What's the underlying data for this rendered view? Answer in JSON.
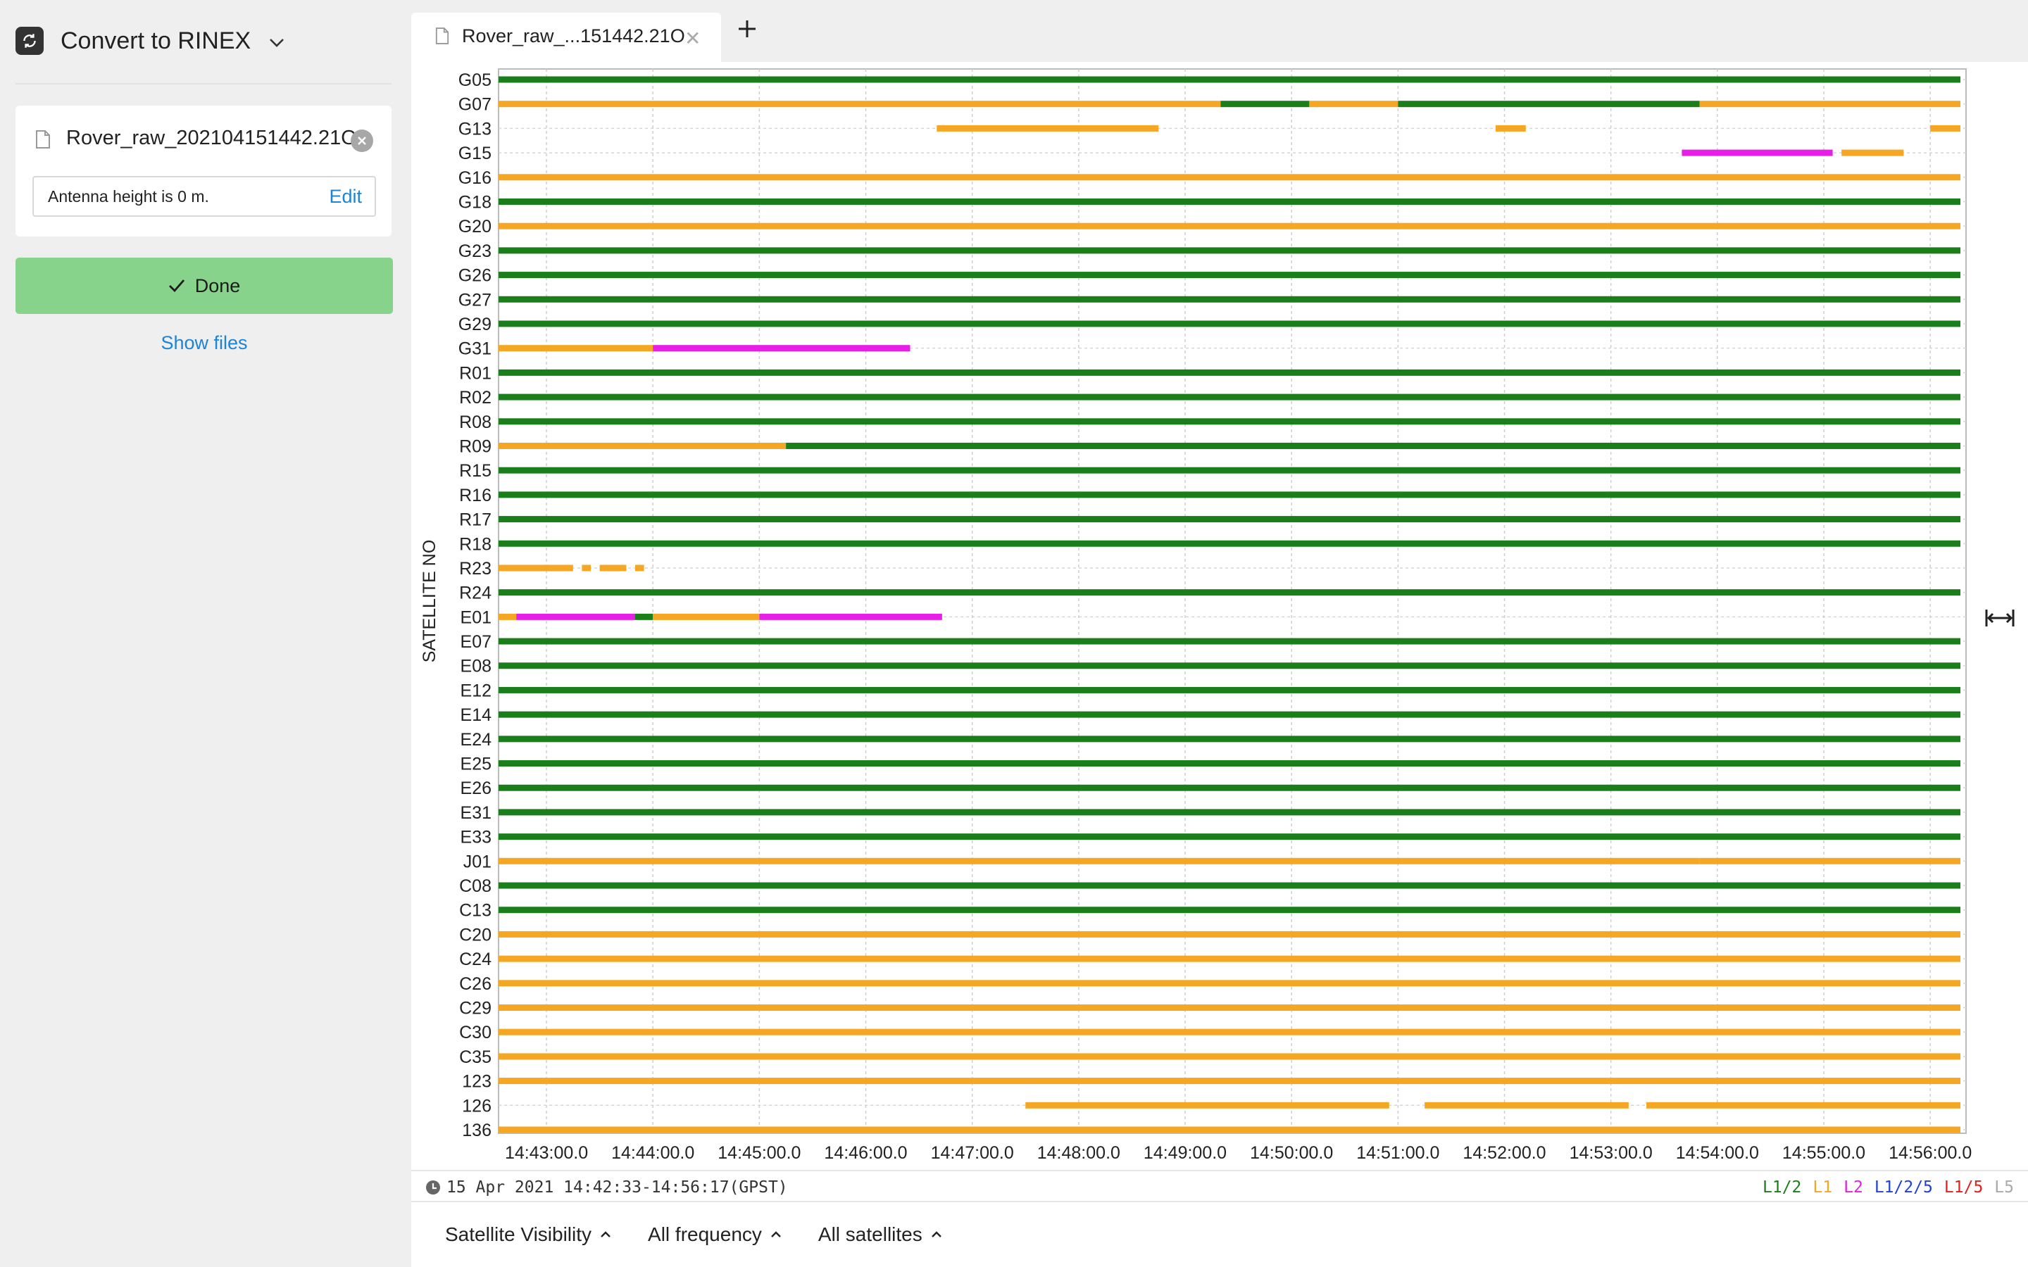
{
  "app": {
    "title": "Convert to RINEX"
  },
  "file_card": {
    "file_name": "Rover_raw_202104151442.21O",
    "antenna_text": "Antenna height is 0 m.",
    "edit_label": "Edit"
  },
  "done_label": "Done",
  "show_files_label": "Show files",
  "tab": {
    "title": "Rover_raw_...151442.21O"
  },
  "chart_data": {
    "type": "satellite-visibility-timeline",
    "ylabel": "SATELLITE NO",
    "x_ticks": [
      "14:43:00.0",
      "14:44:00.0",
      "14:45:00.0",
      "14:46:00.0",
      "14:47:00.0",
      "14:48:00.0",
      "14:49:00.0",
      "14:50:00.0",
      "14:51:00.0",
      "14:52:00.0",
      "14:53:00.0",
      "14:54:00.0",
      "14:55:00.0",
      "14:56:00.0"
    ],
    "xlim": [
      "14:42:33",
      "14:56:17"
    ],
    "grid": true,
    "colors": {
      "L1/2": "#1a7f1a",
      "L1": "#f5a623",
      "L2": "#e61ee6",
      "L1/2/5": "#1f3fe0",
      "L1/5": "#e02020",
      "L5": "#aaaaaa",
      "gap": "#bbbbbb"
    },
    "satellites": [
      {
        "id": "G05",
        "segments": [
          [
            "14:42:33",
            "14:56:17",
            "L1/2"
          ]
        ]
      },
      {
        "id": "G07",
        "segments": [
          [
            "14:42:33",
            "14:49:20",
            "L1"
          ],
          [
            "14:49:20",
            "14:50:10",
            "L1/2"
          ],
          [
            "14:50:10",
            "14:51:00",
            "L1"
          ],
          [
            "14:51:00",
            "14:53:50",
            "L1/2"
          ],
          [
            "14:53:50",
            "14:56:17",
            "L1"
          ]
        ]
      },
      {
        "id": "G13",
        "segments": [
          [
            "14:46:40",
            "14:48:45",
            "L1"
          ],
          [
            "14:51:55",
            "14:52:12",
            "L1"
          ],
          [
            "14:56:00",
            "14:56:17",
            "L1"
          ]
        ]
      },
      {
        "id": "G15",
        "segments": [
          [
            "14:53:40",
            "14:55:05",
            "L2"
          ],
          [
            "14:55:10",
            "14:55:45",
            "L1"
          ]
        ]
      },
      {
        "id": "G16",
        "segments": [
          [
            "14:42:33",
            "14:56:17",
            "L1"
          ]
        ]
      },
      {
        "id": "G18",
        "segments": [
          [
            "14:42:33",
            "14:56:17",
            "L1/2"
          ]
        ]
      },
      {
        "id": "G20",
        "segments": [
          [
            "14:42:33",
            "14:56:17",
            "L1"
          ]
        ]
      },
      {
        "id": "G23",
        "segments": [
          [
            "14:42:33",
            "14:56:17",
            "L1/2"
          ]
        ]
      },
      {
        "id": "G26",
        "segments": [
          [
            "14:42:33",
            "14:56:17",
            "L1/2"
          ]
        ]
      },
      {
        "id": "G27",
        "segments": [
          [
            "14:42:33",
            "14:56:17",
            "L1/2"
          ]
        ]
      },
      {
        "id": "G29",
        "segments": [
          [
            "14:42:33",
            "14:56:17",
            "L1/2"
          ]
        ]
      },
      {
        "id": "G31",
        "segments": [
          [
            "14:42:33",
            "14:44:00",
            "L1"
          ],
          [
            "14:44:00",
            "14:46:25",
            "L2"
          ]
        ]
      },
      {
        "id": "R01",
        "segments": [
          [
            "14:42:33",
            "14:56:17",
            "L1/2"
          ]
        ]
      },
      {
        "id": "R02",
        "segments": [
          [
            "14:42:33",
            "14:56:17",
            "L1/2"
          ]
        ]
      },
      {
        "id": "R08",
        "segments": [
          [
            "14:42:33",
            "14:56:17",
            "L1/2"
          ]
        ]
      },
      {
        "id": "R09",
        "segments": [
          [
            "14:42:33",
            "14:45:15",
            "L1"
          ],
          [
            "14:45:15",
            "14:56:17",
            "L1/2"
          ]
        ]
      },
      {
        "id": "R15",
        "segments": [
          [
            "14:42:33",
            "14:56:17",
            "L1/2"
          ]
        ]
      },
      {
        "id": "R16",
        "segments": [
          [
            "14:42:33",
            "14:56:17",
            "L1/2"
          ]
        ]
      },
      {
        "id": "R17",
        "segments": [
          [
            "14:42:33",
            "14:56:17",
            "L1/2"
          ]
        ]
      },
      {
        "id": "R18",
        "segments": [
          [
            "14:42:33",
            "14:56:17",
            "L1/2"
          ]
        ]
      },
      {
        "id": "R23",
        "segments": [
          [
            "14:42:33",
            "14:43:15",
            "L1"
          ],
          [
            "14:43:20",
            "14:43:25",
            "L1"
          ],
          [
            "14:43:30",
            "14:43:45",
            "L1"
          ],
          [
            "14:43:50",
            "14:43:55",
            "L1"
          ]
        ]
      },
      {
        "id": "R24",
        "segments": [
          [
            "14:42:33",
            "14:56:17",
            "L1/2"
          ]
        ]
      },
      {
        "id": "E01",
        "segments": [
          [
            "14:42:33",
            "14:42:43",
            "L1"
          ],
          [
            "14:42:43",
            "14:43:50",
            "L2"
          ],
          [
            "14:43:50",
            "14:44:00",
            "L1/2"
          ],
          [
            "14:44:00",
            "14:45:00",
            "L1"
          ],
          [
            "14:45:00",
            "14:46:43",
            "L2"
          ]
        ]
      },
      {
        "id": "E07",
        "segments": [
          [
            "14:42:33",
            "14:56:17",
            "L1/2"
          ]
        ]
      },
      {
        "id": "E08",
        "segments": [
          [
            "14:42:33",
            "14:56:17",
            "L1/2"
          ]
        ]
      },
      {
        "id": "E12",
        "segments": [
          [
            "14:42:33",
            "14:56:17",
            "L1/2"
          ]
        ]
      },
      {
        "id": "E14",
        "segments": [
          [
            "14:42:33",
            "14:56:17",
            "L1/2"
          ]
        ]
      },
      {
        "id": "E24",
        "segments": [
          [
            "14:42:33",
            "14:56:17",
            "L1/2"
          ]
        ]
      },
      {
        "id": "E25",
        "segments": [
          [
            "14:42:33",
            "14:56:17",
            "L1/2"
          ]
        ]
      },
      {
        "id": "E26",
        "segments": [
          [
            "14:42:33",
            "14:56:17",
            "L1/2"
          ]
        ]
      },
      {
        "id": "E31",
        "segments": [
          [
            "14:42:33",
            "14:56:17",
            "L1/2"
          ]
        ]
      },
      {
        "id": "E33",
        "segments": [
          [
            "14:42:33",
            "14:56:17",
            "L1/2"
          ]
        ]
      },
      {
        "id": "J01",
        "segments": [
          [
            "14:42:33",
            "14:53:50",
            "L1"
          ],
          [
            "14:53:50",
            "14:56:17",
            "L1"
          ]
        ]
      },
      {
        "id": "C08",
        "segments": [
          [
            "14:42:33",
            "14:56:17",
            "L1/2"
          ]
        ]
      },
      {
        "id": "C13",
        "segments": [
          [
            "14:42:33",
            "14:56:17",
            "L1/2"
          ]
        ]
      },
      {
        "id": "C20",
        "segments": [
          [
            "14:42:33",
            "14:56:17",
            "L1"
          ]
        ]
      },
      {
        "id": "C24",
        "segments": [
          [
            "14:42:33",
            "14:56:17",
            "L1"
          ]
        ]
      },
      {
        "id": "C26",
        "segments": [
          [
            "14:42:33",
            "14:56:17",
            "L1"
          ]
        ]
      },
      {
        "id": "C29",
        "segments": [
          [
            "14:42:33",
            "14:56:17",
            "L1"
          ]
        ]
      },
      {
        "id": "C30",
        "segments": [
          [
            "14:42:33",
            "14:56:17",
            "L1"
          ]
        ]
      },
      {
        "id": "C35",
        "segments": [
          [
            "14:42:33",
            "14:56:17",
            "L1"
          ]
        ]
      },
      {
        "id": "123",
        "segments": [
          [
            "14:42:33",
            "14:56:17",
            "L1"
          ]
        ]
      },
      {
        "id": "126",
        "segments": [
          [
            "14:47:30",
            "14:50:55",
            "L1"
          ],
          [
            "14:51:15",
            "14:53:10",
            "L1"
          ],
          [
            "14:53:20",
            "14:56:17",
            "L1"
          ]
        ]
      },
      {
        "id": "136",
        "segments": [
          [
            "14:42:33",
            "14:56:17",
            "L1"
          ]
        ]
      }
    ]
  },
  "status": {
    "date_range": "15 Apr 2021 14:42:33-14:56:17(GPST)"
  },
  "legend": [
    {
      "label": "L1/2",
      "color": "#1a7f1a"
    },
    {
      "label": "L1",
      "color": "#f5a623"
    },
    {
      "label": "L2",
      "color": "#e61ee6"
    },
    {
      "label": "L1/2/5",
      "color": "#1f3fe0"
    },
    {
      "label": "L1/5",
      "color": "#e02020"
    },
    {
      "label": "L5",
      "color": "#aaaaaa"
    }
  ],
  "footer": {
    "view_select": "Satellite Visibility",
    "frequency_select": "All frequency",
    "satellites_select": "All satellites"
  }
}
